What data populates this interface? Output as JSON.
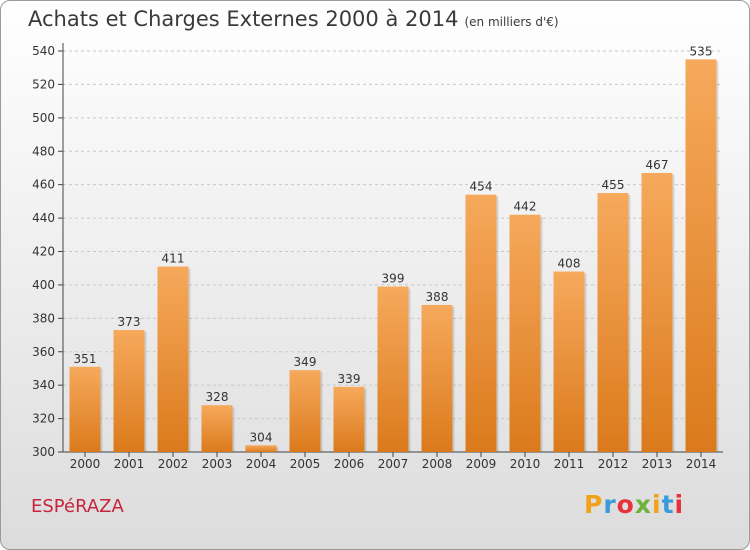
{
  "title": "Achats et Charges Externes 2000 à 2014",
  "subtitle": "(en milliers d'€)",
  "commune": "ESPéRAZA",
  "logo": {
    "letters": [
      "P",
      "r",
      "o",
      "x",
      "i",
      "t",
      "i"
    ],
    "colors": [
      "#f0a21a",
      "#3b9ad9",
      "#e8313a",
      "#6fb23b",
      "#f0a21a",
      "#3b9ad9",
      "#e8313a"
    ]
  },
  "colors": {
    "bar_light": "#f6a95c",
    "bar_dark": "#db7a1c",
    "accent": "#c8233c"
  },
  "chart_data": {
    "type": "bar",
    "categories": [
      "2000",
      "2001",
      "2002",
      "2003",
      "2004",
      "2005",
      "2006",
      "2007",
      "2008",
      "2009",
      "2010",
      "2011",
      "2012",
      "2013",
      "2014"
    ],
    "values": [
      351,
      373,
      411,
      328,
      304,
      349,
      339,
      399,
      388,
      454,
      442,
      408,
      455,
      467,
      535
    ],
    "ylim": [
      300,
      540
    ],
    "yticks": [
      300,
      320,
      340,
      360,
      380,
      400,
      420,
      440,
      460,
      480,
      500,
      520,
      540
    ],
    "grid": true,
    "xlabel": "",
    "ylabel": ""
  }
}
